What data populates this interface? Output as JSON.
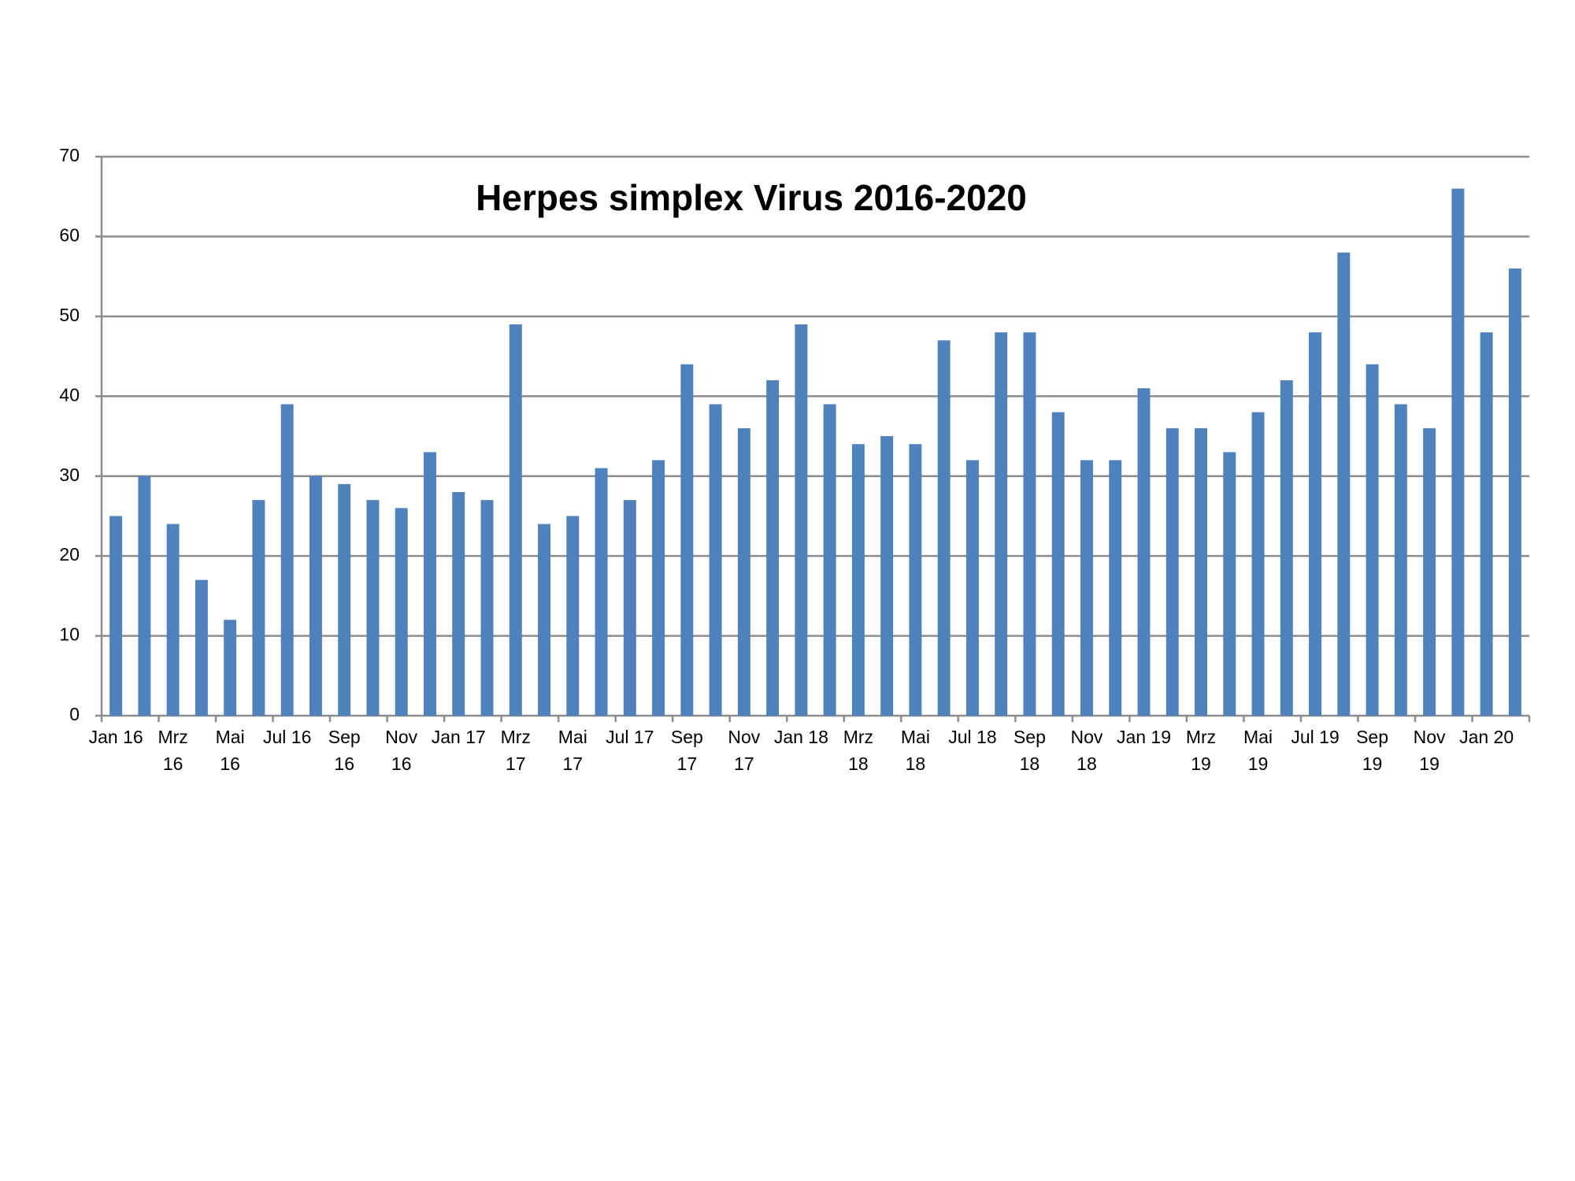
{
  "chart_data": {
    "type": "bar",
    "title": "Herpes simplex Virus 2016-2020",
    "categories": [
      "Jan 16",
      null,
      "Mrz\n16",
      null,
      "Mai\n16",
      null,
      "Jul 16",
      null,
      "Sep\n16",
      null,
      "Nov\n16",
      null,
      "Jan 17",
      null,
      "Mrz\n17",
      null,
      "Mai\n17",
      null,
      "Jul 17",
      null,
      "Sep\n17",
      null,
      "Nov\n17",
      null,
      "Jan 18",
      null,
      "Mrz\n18",
      null,
      "Mai\n18",
      null,
      "Jul 18",
      null,
      "Sep\n18",
      null,
      "Nov\n18",
      null,
      "Jan 19",
      null,
      "Mrz\n19",
      null,
      "Mai\n19",
      null,
      "Jul 19",
      null,
      "Sep\n19",
      null,
      "Nov\n19",
      null,
      "Jan 20",
      null
    ],
    "values": [
      25,
      30,
      24,
      17,
      12,
      27,
      39,
      30,
      29,
      27,
      26,
      33,
      28,
      27,
      49,
      24,
      25,
      31,
      27,
      32,
      44,
      39,
      36,
      42,
      49,
      39,
      34,
      35,
      34,
      47,
      32,
      48,
      48,
      38,
      32,
      32,
      41,
      36,
      36,
      33,
      38,
      42,
      48,
      58,
      44,
      39,
      36,
      66,
      48,
      56
    ],
    "color": "#4f81bd",
    "ylim": [
      0,
      70
    ],
    "yticks": [
      0,
      10,
      20,
      30,
      40,
      50,
      60,
      70
    ],
    "grid": true
  }
}
